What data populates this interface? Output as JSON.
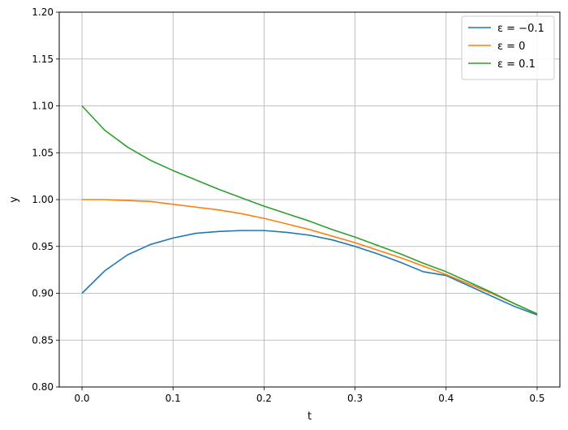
{
  "chart_data": {
    "type": "line",
    "title": "",
    "xlabel": "t",
    "ylabel": "y",
    "xlim": [
      -0.025,
      0.525
    ],
    "ylim": [
      0.8,
      1.2
    ],
    "xticks": [
      0.0,
      0.1,
      0.2,
      0.3,
      0.4,
      0.5
    ],
    "xtick_labels": [
      "0.0",
      "0.1",
      "0.2",
      "0.3",
      "0.4",
      "0.5"
    ],
    "yticks": [
      0.8,
      0.85,
      0.9,
      0.95,
      1.0,
      1.05,
      1.1,
      1.15,
      1.2
    ],
    "ytick_labels": [
      "0.80",
      "0.85",
      "0.90",
      "0.95",
      "1.00",
      "1.05",
      "1.10",
      "1.15",
      "1.20"
    ],
    "grid": true,
    "legend_position": "top-right",
    "x": [
      0.0,
      0.025,
      0.05,
      0.075,
      0.1,
      0.125,
      0.15,
      0.175,
      0.2,
      0.225,
      0.25,
      0.275,
      0.3,
      0.325,
      0.35,
      0.375,
      0.4,
      0.425,
      0.45,
      0.475,
      0.5
    ],
    "series": [
      {
        "name": "ε = −0.1",
        "color": "#1f77b4",
        "values": [
          0.9,
          0.924,
          0.941,
          0.952,
          0.959,
          0.964,
          0.966,
          0.967,
          0.967,
          0.965,
          0.962,
          0.957,
          0.95,
          0.942,
          0.933,
          0.923,
          0.919,
          0.908,
          0.897,
          0.886,
          0.877
        ]
      },
      {
        "name": "ε = 0",
        "color": "#ff7f0e",
        "values": [
          1.0,
          1.0,
          0.999,
          0.998,
          0.995,
          0.992,
          0.989,
          0.985,
          0.98,
          0.974,
          0.968,
          0.961,
          0.954,
          0.946,
          0.938,
          0.929,
          0.92,
          0.91,
          0.9,
          0.889,
          0.878
        ]
      },
      {
        "name": "ε = 0.1",
        "color": "#2ca02c",
        "values": [
          1.1,
          1.074,
          1.056,
          1.042,
          1.031,
          1.021,
          1.011,
          1.002,
          0.993,
          0.985,
          0.977,
          0.968,
          0.96,
          0.951,
          0.942,
          0.932,
          0.923,
          0.912,
          0.901,
          0.889,
          0.878
        ]
      }
    ]
  }
}
